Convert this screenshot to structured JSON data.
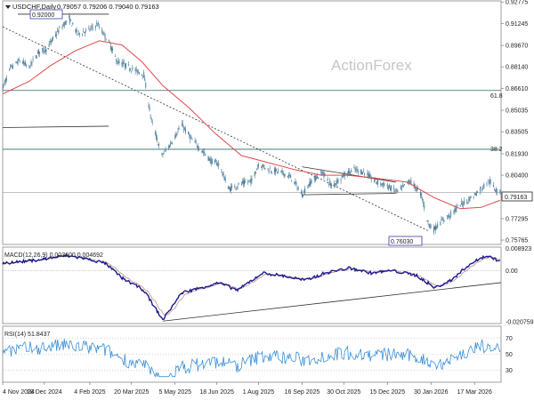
{
  "chart_data": {
    "type": "line",
    "symbol": "USDCHF,Daily",
    "ohlc_header": "0.79057 0.79206 0.79040 0.79163",
    "watermark": "ActionForex",
    "x_dates": [
      "4 Nov 2024",
      "18 Dec 2024",
      "4 Feb 2025",
      "20 Mar 2025",
      "5 May 2025",
      "18 Jun 2025",
      "1 Aug 2025",
      "16 Sep 2025",
      "30 Oct 2025",
      "15 Dec 2025",
      "30 Jan 2026",
      "17 Mar 2026"
    ],
    "price_panel": {
      "y_ticks": [
        "0.92775",
        "0.91245",
        "0.89670",
        "0.88140",
        "0.86610",
        "0.85035",
        "0.83505",
        "0.81930",
        "0.80400",
        "0.78825",
        "0.77295",
        "0.75765"
      ],
      "ylim": [
        0.7545,
        0.9285
      ],
      "last_price": "0.79163",
      "fib_labels": [
        "61.8",
        "38.2"
      ],
      "fib_levels": [
        0.8645,
        0.8225
      ],
      "support_level": 0.7916,
      "annotations": [
        "0.92000",
        "0.76030"
      ],
      "close_path": [
        {
          "date": "2024-11-04",
          "v": 0.866
        },
        {
          "date": "2024-11-12",
          "v": 0.88
        },
        {
          "date": "2024-11-22",
          "v": 0.886
        },
        {
          "date": "2024-12-02",
          "v": 0.881
        },
        {
          "date": "2024-12-12",
          "v": 0.892
        },
        {
          "date": "2024-12-20",
          "v": 0.894
        },
        {
          "date": "2025-01-03",
          "v": 0.908
        },
        {
          "date": "2025-01-13",
          "v": 0.916
        },
        {
          "date": "2025-01-22",
          "v": 0.905
        },
        {
          "date": "2025-02-04",
          "v": 0.908
        },
        {
          "date": "2025-02-12",
          "v": 0.912
        },
        {
          "date": "2025-02-24",
          "v": 0.899
        },
        {
          "date": "2025-03-05",
          "v": 0.885
        },
        {
          "date": "2025-03-12",
          "v": 0.883
        },
        {
          "date": "2025-03-20",
          "v": 0.88
        },
        {
          "date": "2025-04-02",
          "v": 0.876
        },
        {
          "date": "2025-04-10",
          "v": 0.843
        },
        {
          "date": "2025-04-21",
          "v": 0.818
        },
        {
          "date": "2025-04-29",
          "v": 0.825
        },
        {
          "date": "2025-05-12",
          "v": 0.84
        },
        {
          "date": "2025-05-22",
          "v": 0.83
        },
        {
          "date": "2025-06-03",
          "v": 0.821
        },
        {
          "date": "2025-06-12",
          "v": 0.814
        },
        {
          "date": "2025-06-20",
          "v": 0.812
        },
        {
          "date": "2025-07-01",
          "v": 0.794
        },
        {
          "date": "2025-07-15",
          "v": 0.798
        },
        {
          "date": "2025-07-25",
          "v": 0.8
        },
        {
          "date": "2025-08-01",
          "v": 0.812
        },
        {
          "date": "2025-08-12",
          "v": 0.808
        },
        {
          "date": "2025-08-25",
          "v": 0.806
        },
        {
          "date": "2025-09-05",
          "v": 0.802
        },
        {
          "date": "2025-09-16",
          "v": 0.79
        },
        {
          "date": "2025-09-26",
          "v": 0.8
        },
        {
          "date": "2025-10-08",
          "v": 0.806
        },
        {
          "date": "2025-10-17",
          "v": 0.796
        },
        {
          "date": "2025-10-30",
          "v": 0.804
        },
        {
          "date": "2025-11-10",
          "v": 0.808
        },
        {
          "date": "2025-11-21",
          "v": 0.806
        },
        {
          "date": "2025-12-01",
          "v": 0.8
        },
        {
          "date": "2025-12-15",
          "v": 0.796
        },
        {
          "date": "2025-12-26",
          "v": 0.792
        },
        {
          "date": "2026-01-08",
          "v": 0.8
        },
        {
          "date": "2026-01-20",
          "v": 0.79
        },
        {
          "date": "2026-01-27",
          "v": 0.77
        },
        {
          "date": "2026-02-02",
          "v": 0.765
        },
        {
          "date": "2026-02-10",
          "v": 0.771
        },
        {
          "date": "2026-02-20",
          "v": 0.776
        },
        {
          "date": "2026-03-02",
          "v": 0.783
        },
        {
          "date": "2026-03-10",
          "v": 0.786
        },
        {
          "date": "2026-03-17",
          "v": 0.79
        },
        {
          "date": "2026-03-25",
          "v": 0.795
        },
        {
          "date": "2026-04-01",
          "v": 0.8
        },
        {
          "date": "2026-04-08",
          "v": 0.794
        },
        {
          "date": "2026-04-13",
          "v": 0.7916
        }
      ],
      "ma_path": [
        {
          "date": "2024-11-04",
          "v": 0.862
        },
        {
          "date": "2024-12-02",
          "v": 0.871
        },
        {
          "date": "2024-12-24",
          "v": 0.882
        },
        {
          "date": "2025-01-20",
          "v": 0.893
        },
        {
          "date": "2025-02-14",
          "v": 0.9
        },
        {
          "date": "2025-03-10",
          "v": 0.897
        },
        {
          "date": "2025-03-31",
          "v": 0.885
        },
        {
          "date": "2025-04-22",
          "v": 0.868
        },
        {
          "date": "2025-05-20",
          "v": 0.852
        },
        {
          "date": "2025-06-16",
          "v": 0.834
        },
        {
          "date": "2025-07-14",
          "v": 0.818
        },
        {
          "date": "2025-08-11",
          "v": 0.813
        },
        {
          "date": "2025-09-08",
          "v": 0.808
        },
        {
          "date": "2025-10-06",
          "v": 0.804
        },
        {
          "date": "2025-11-03",
          "v": 0.804
        },
        {
          "date": "2025-12-01",
          "v": 0.802
        },
        {
          "date": "2026-01-05",
          "v": 0.799
        },
        {
          "date": "2026-02-02",
          "v": 0.788
        },
        {
          "date": "2026-03-02",
          "v": 0.78
        },
        {
          "date": "2026-03-24",
          "v": 0.781
        },
        {
          "date": "2026-04-13",
          "v": 0.786
        }
      ],
      "lines": [
        {
          "name": "long-downtrend",
          "from": {
            "date": "2024-11-04",
            "v": 0.91
          },
          "to": {
            "date": "2026-01-28",
            "v": 0.764
          }
        },
        {
          "name": "top-bracket",
          "from": {
            "date": "2024-11-20",
            "v": 0.919
          },
          "to": {
            "date": "2025-02-24",
            "v": 0.919
          }
        },
        {
          "name": "early-support",
          "from": {
            "date": "2024-11-04",
            "v": 0.838
          },
          "to": {
            "date": "2025-02-24",
            "v": 0.839
          }
        },
        {
          "name": "triangle-upper",
          "from": {
            "date": "2025-09-16",
            "v": 0.81
          },
          "to": {
            "date": "2025-12-24",
            "v": 0.799
          }
        },
        {
          "name": "triangle-lower",
          "from": {
            "date": "2025-09-16",
            "v": 0.79
          },
          "to": {
            "date": "2025-12-24",
            "v": 0.791
          }
        }
      ]
    },
    "macd_panel": {
      "label": "MACD(12,26,9) 0.003600 0.004692",
      "y_ticks": [
        "0.008923",
        "0.00",
        "-0.020759"
      ],
      "ylim": [
        -0.0215,
        0.0095
      ]
    },
    "rsi_panel": {
      "label": "RSI(14) 51.8437",
      "y_ticks": [
        "70",
        "50",
        "30"
      ],
      "ylim": [
        15,
        85
      ]
    },
    "colors": {
      "price": "#4b7d9a",
      "ma": "#e04848",
      "macd": "#1a1a8c",
      "signal": "#c88c8c",
      "rsi": "#3a8fd8",
      "fib": "#2a6a6a",
      "grid": "#888888"
    }
  }
}
